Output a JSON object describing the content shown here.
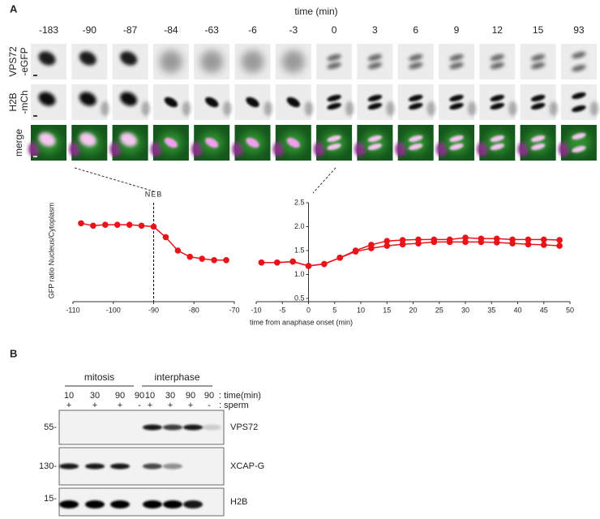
{
  "panel_a": {
    "label": "A",
    "time_axis_label": "time (min)",
    "times": [
      -183,
      -90,
      -87,
      -84,
      -63,
      -6,
      -3,
      0,
      3,
      6,
      9,
      12,
      15,
      93
    ],
    "row_labels": [
      [
        "VPS72",
        "-eGFP"
      ],
      [
        "H2B",
        "-mCh"
      ],
      [
        "merge"
      ]
    ]
  },
  "chart_data": [
    {
      "type": "line",
      "y_label": "GFP ratio Nucleus/Cytoplasm",
      "annotations": [
        {
          "text": "NEB",
          "x": -90
        }
      ],
      "xlim": [
        -110,
        -70
      ],
      "xticks": [
        -110,
        -100,
        -90,
        -80,
        -70
      ],
      "ylim": [
        0.5,
        2.5
      ],
      "series": [
        {
          "color": "#e8141a",
          "x": [
            -108,
            -105,
            -102,
            -99,
            -96,
            -93,
            -90,
            -87,
            -84,
            -81,
            -78,
            -75,
            -72
          ],
          "values": [
            2.07,
            2.02,
            2.04,
            2.04,
            2.04,
            2.02,
            2.0,
            1.78,
            1.5,
            1.37,
            1.33,
            1.3,
            1.3
          ]
        }
      ]
    },
    {
      "type": "line",
      "x_label": "time from anaphase onset (min)",
      "xlim": [
        -10,
        50
      ],
      "xticks": [
        -10,
        -5,
        0,
        5,
        10,
        15,
        20,
        25,
        30,
        35,
        40,
        45,
        50
      ],
      "ylim": [
        0.5,
        2.5
      ],
      "yticks": [
        0.5,
        {
          "value": 1,
          "label": "1.0"
        },
        1.5,
        {
          "value": 2,
          "label": "2.0"
        },
        2.5
      ],
      "series": [
        {
          "color": "#e8141a",
          "x": [
            -9,
            -6,
            -3,
            0,
            3,
            6,
            9,
            12,
            15,
            18,
            21,
            24,
            27,
            30,
            33,
            36,
            39,
            42,
            45,
            48
          ],
          "values": [
            1.25,
            1.25,
            1.27,
            1.18,
            1.22,
            1.35,
            1.5,
            1.62,
            1.7,
            1.72,
            1.73,
            1.73,
            1.73,
            1.77,
            1.75,
            1.75,
            1.73,
            1.73,
            1.73,
            1.72
          ]
        },
        {
          "color": "#e8141a",
          "x": [
            -9,
            -6,
            -3,
            0,
            3,
            6,
            9,
            12,
            15,
            18,
            21,
            24,
            27,
            30,
            33,
            36,
            39,
            42,
            45,
            48
          ],
          "values": [
            1.25,
            1.25,
            1.27,
            1.18,
            1.22,
            1.35,
            1.48,
            1.55,
            1.6,
            1.63,
            1.65,
            1.68,
            1.68,
            1.68,
            1.68,
            1.67,
            1.65,
            1.63,
            1.62,
            1.6
          ]
        }
      ]
    }
  ],
  "panel_b": {
    "label": "B",
    "groups": [
      "mitosis",
      "interphase"
    ],
    "time_row": {
      "values": [
        10,
        30,
        90,
        90,
        10,
        30,
        90,
        90
      ],
      "label": ": time(min)"
    },
    "sperm_row": {
      "values": [
        "+",
        "+",
        "+",
        "-",
        "+",
        "+",
        "+",
        "-"
      ],
      "label": ": sperm"
    },
    "blots": [
      {
        "marker": "55-",
        "name": "VPS72"
      },
      {
        "marker": "130-",
        "name": "XCAP-G"
      },
      {
        "marker": "15-",
        "name": "H2B"
      }
    ]
  }
}
